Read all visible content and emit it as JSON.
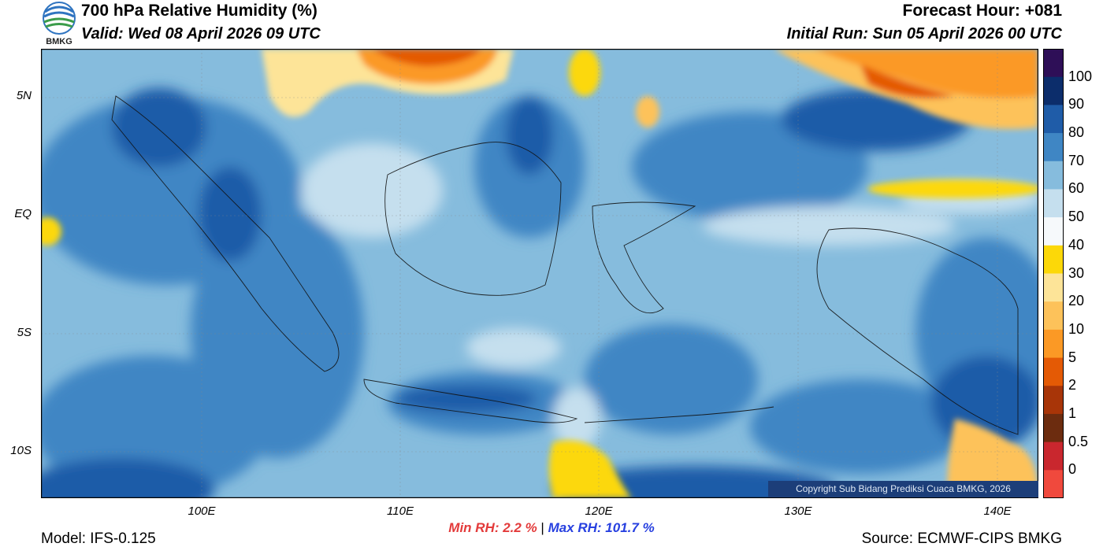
{
  "header": {
    "title": "700 hPa Relative Humidity (%)",
    "valid": "Valid: Wed 08 April 2026 09 UTC",
    "forecast_hour": "Forecast Hour: +081",
    "initial_run": "Initial Run: Sun 05 April 2026 00 UTC"
  },
  "logo": {
    "text": "BMKG"
  },
  "map": {
    "lat_labels": [
      "5N",
      "EQ",
      "5S",
      "10S"
    ],
    "lon_labels": [
      "100E",
      "110E",
      "120E",
      "130E",
      "140E"
    ],
    "copyright": "Copyright Sub Bidang Prediksi Cuaca BMKG, 2026"
  },
  "colorbar": {
    "labels": [
      "100",
      "90",
      "80",
      "70",
      "60",
      "50",
      "40",
      "30",
      "20",
      "10",
      "5",
      "2",
      "1",
      "0.5",
      "0"
    ],
    "colors": [
      "#2e0f57",
      "#0c2d6b",
      "#1f5ca8",
      "#3f86c4",
      "#86bcdd",
      "#c5dfee",
      "#f6f9fb",
      "#fcd808",
      "#fde498",
      "#fdc25a",
      "#fb9925",
      "#e45a05",
      "#a83508",
      "#6c2c0f",
      "#c9272e",
      "#f0493d"
    ]
  },
  "stats": {
    "min_rh": "Min RH:   2.2 %",
    "separator": "|",
    "max_rh": "Max RH: 101.7 %"
  },
  "footer": {
    "model": "Model: IFS-0.125",
    "source": "Source: ECMWF-CIPS BMKG"
  }
}
